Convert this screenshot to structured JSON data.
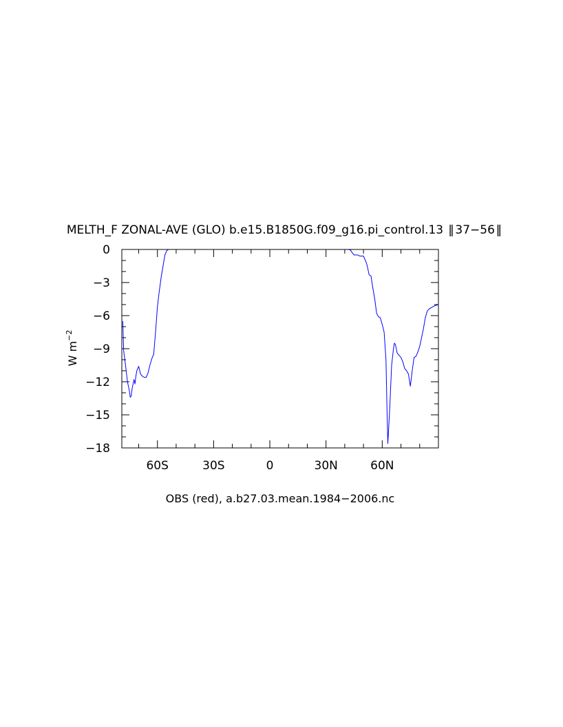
{
  "chart_data": {
    "type": "line",
    "title": "MELTH_F ZONAL-AVE (GLO) b.e15.B1850G.f09_g16.pi_control.13  ‖ 37−56 ‖",
    "xlabel": "OBS (red), a.b27.03.mean.1984−2006.nc",
    "ylabel": "W m",
    "ylabel_superscript": "−2",
    "xlim": [
      -79,
      90
    ],
    "ylim": [
      -18,
      0
    ],
    "x_ticks": [
      {
        "value": -60,
        "label": "60S"
      },
      {
        "value": -30,
        "label": "30S"
      },
      {
        "value": 0,
        "label": "0"
      },
      {
        "value": 30,
        "label": "30N"
      },
      {
        "value": 60,
        "label": "60N"
      }
    ],
    "y_ticks": [
      {
        "value": 0,
        "label": "0"
      },
      {
        "value": -3,
        "label": "−3"
      },
      {
        "value": -6,
        "label": "−6"
      },
      {
        "value": -9,
        "label": "−9"
      },
      {
        "value": -12,
        "label": "−12"
      },
      {
        "value": -15,
        "label": "−15"
      },
      {
        "value": -18,
        "label": "−18"
      }
    ],
    "series": [
      {
        "color": "#0000ff",
        "x": [
          -78.5,
          -78.0,
          -77.0,
          -76.0,
          -75.0,
          -74.5,
          -74.0,
          -73.5,
          -72.5,
          -72.0,
          -71.5,
          -71.0,
          -70.0,
          -69.0,
          -68.0,
          -67.0,
          -66.0,
          -65.0,
          -64.0,
          -63.0,
          -62.0,
          -61.0,
          -60.0,
          -59.0,
          -58.0,
          -57.0,
          -56.0,
          -55.0,
          -54.0,
          -53.0,
          -52.0,
          -51.0,
          -50.0,
          42.0,
          43.0,
          44.0,
          45.0,
          47.0,
          48.0,
          50.0,
          51.5,
          52.0,
          53.0,
          54.0,
          55.0,
          56.0,
          57.0,
          58.0,
          59.0,
          60.0,
          61.0,
          62.0,
          62.5,
          63.0,
          64.0,
          65.0,
          66.0,
          66.5,
          67.0,
          68.0,
          69.0,
          70.0,
          71.0,
          72.0,
          73.0,
          74.0,
          75.0,
          76.0,
          77.0,
          78.0,
          79.0,
          80.0,
          81.0,
          82.0,
          83.0,
          84.0,
          85.0,
          86.0,
          88.0,
          90.0
        ],
        "y": [
          -6.5,
          -9.2,
          -10.5,
          -12.0,
          -12.8,
          -13.4,
          -13.3,
          -12.6,
          -11.8,
          -12.2,
          -11.5,
          -11.0,
          -10.6,
          -11.3,
          -11.5,
          -11.6,
          -11.6,
          -11.2,
          -10.5,
          -9.9,
          -9.5,
          -7.5,
          -5.2,
          -3.8,
          -2.5,
          -1.5,
          -0.5,
          -0.1,
          0,
          0,
          0,
          0,
          0,
          0,
          -0.05,
          -0.3,
          -0.5,
          -0.5,
          -0.6,
          -0.6,
          -1.2,
          -1.5,
          -2.3,
          -2.4,
          -3.5,
          -4.5,
          -5.8,
          -6.1,
          -6.2,
          -6.8,
          -7.5,
          -10.0,
          -14.0,
          -17.6,
          -14.5,
          -10.5,
          -9.0,
          -8.5,
          -8.6,
          -9.4,
          -9.6,
          -9.8,
          -10.2,
          -10.8,
          -11.0,
          -11.3,
          -12.4,
          -11.0,
          -9.8,
          -9.7,
          -9.3,
          -8.8,
          -8.0,
          -7.2,
          -6.2,
          -5.6,
          -5.4,
          -5.3,
          -5.1,
          -5.0
        ]
      }
    ]
  }
}
